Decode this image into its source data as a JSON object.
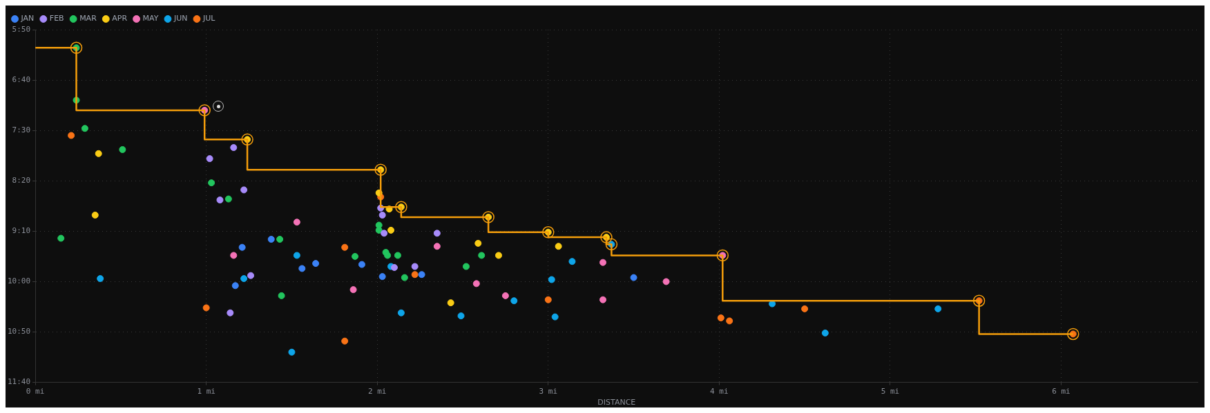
{
  "chart_data": {
    "type": "scatter",
    "xlabel": "DISTANCE",
    "xlim": [
      0,
      6.8
    ],
    "xticks": [
      {
        "value": 0,
        "label": "0 mi"
      },
      {
        "value": 1,
        "label": "1 mi"
      },
      {
        "value": 2,
        "label": "2 mi"
      },
      {
        "value": 3,
        "label": "3 mi"
      },
      {
        "value": 4,
        "label": "4 mi"
      },
      {
        "value": 5,
        "label": "5 mi"
      },
      {
        "value": 6,
        "label": "6 mi"
      }
    ],
    "ylim": [
      700,
      350
    ],
    "yticks": [
      {
        "value": 350,
        "label": "5:50"
      },
      {
        "value": 400,
        "label": "6:40"
      },
      {
        "value": 450,
        "label": "7:30"
      },
      {
        "value": 500,
        "label": "8:20"
      },
      {
        "value": 550,
        "label": "9:10"
      },
      {
        "value": 600,
        "label": "10:00"
      },
      {
        "value": 650,
        "label": "10:50"
      },
      {
        "value": 700,
        "label": "11:40"
      }
    ],
    "grid": true,
    "legend": "top left",
    "marker": "circle",
    "series": [
      {
        "type": "step",
        "color": "#f59e0b",
        "x": [
          0,
          0.24,
          0.99,
          1.24,
          2.02,
          2.14,
          2.65,
          3.0,
          3.34,
          3.37,
          4.02,
          5.52,
          6.07
        ],
        "values": [
          368,
          368,
          430,
          459,
          489,
          526,
          536,
          551,
          556,
          563,
          574,
          619,
          652
        ]
      },
      {
        "name": "JAN",
        "color": "#3b82f6",
        "x": [
          1.38,
          1.21,
          1.64,
          1.91,
          1.56,
          2.03,
          1.17,
          2.26,
          3.5
        ],
        "values": [
          558,
          566,
          582,
          583,
          587,
          595,
          604,
          593,
          596
        ]
      },
      {
        "name": "FEB",
        "color": "#a78bfa",
        "x": [
          1.16,
          1.02,
          1.22,
          1.08,
          2.02,
          2.03,
          2.04,
          2.1,
          2.22,
          1.26,
          1.14,
          2.35
        ],
        "values": [
          467,
          478,
          509,
          519,
          527,
          534,
          552,
          586,
          585,
          594,
          631,
          552
        ]
      },
      {
        "name": "MAR",
        "color": "#22c55e",
        "x": [
          0.24,
          0.24,
          0.29,
          0.51,
          1.03,
          1.13,
          2.01,
          2.01,
          0.15,
          1.43,
          1.87,
          2.05,
          2.06,
          2.12,
          2.16,
          1.44,
          2.61,
          2.52
        ],
        "values": [
          368,
          420,
          448,
          469,
          502,
          518,
          544,
          549,
          557,
          558,
          575,
          571,
          574,
          574,
          596,
          614,
          574,
          585
        ]
      },
      {
        "name": "APR",
        "color": "#facc15",
        "x": [
          0.37,
          2.01,
          2.07,
          0.35,
          2.08,
          2.59,
          3.06,
          2.71,
          2.43,
          1.24,
          2.02,
          2.14,
          2.65,
          3.0,
          3.34
        ],
        "values": [
          473,
          512,
          528,
          534,
          549,
          562,
          565,
          574,
          621,
          459,
          489,
          526,
          536,
          551,
          556
        ]
      },
      {
        "name": "MAY",
        "color": "#f472b6",
        "x": [
          0.99,
          4.02,
          1.53,
          1.16,
          1.86,
          2.35,
          3.32,
          2.58,
          3.69,
          2.75,
          3.32
        ],
        "values": [
          430,
          574,
          541,
          574,
          608,
          565,
          581,
          602,
          600,
          614,
          618
        ]
      },
      {
        "name": "JUN",
        "color": "#0ea5e9",
        "x": [
          3.37,
          1.53,
          2.08,
          0.38,
          1.22,
          2.14,
          1.5,
          3.14,
          3.02,
          2.8,
          2.49,
          3.04,
          4.31,
          4.62,
          5.28
        ],
        "values": [
          563,
          574,
          585,
          597,
          597,
          631,
          670,
          580,
          598,
          619,
          634,
          635,
          622,
          651,
          627
        ]
      },
      {
        "name": "JUL",
        "color": "#f97316",
        "x": [
          5.52,
          6.07,
          0.21,
          2.02,
          1.81,
          2.22,
          1.0,
          1.81,
          3.0,
          4.5,
          4.01,
          4.06
        ],
        "values": [
          619,
          652,
          455,
          516,
          566,
          593,
          626,
          659,
          618,
          627,
          636,
          639
        ]
      }
    ]
  }
}
